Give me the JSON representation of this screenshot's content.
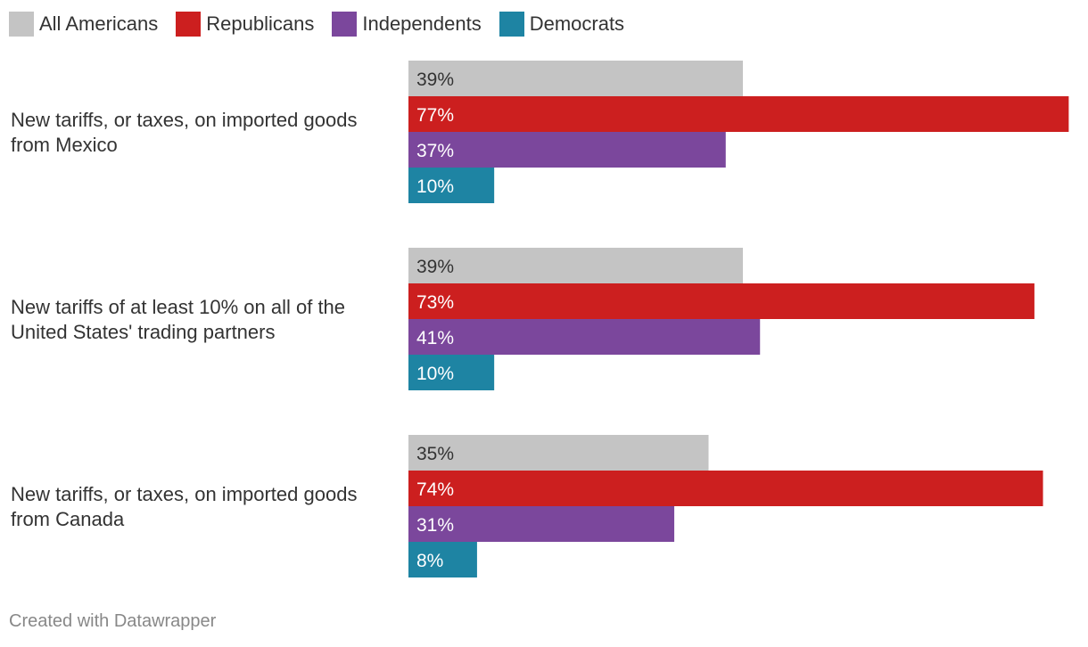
{
  "chart_data": {
    "type": "bar",
    "orientation": "horizontal",
    "grouped": true,
    "value_suffix": "%",
    "xlim": [
      0,
      78
    ],
    "categories": [
      [
        "New tariffs, or taxes, on imported goods",
        "from Mexico"
      ],
      [
        "New tariffs of at least 10% on all of the",
        "United States' trading partners"
      ],
      [
        "New tariffs, or taxes, on imported goods",
        "from Canada"
      ]
    ],
    "series": [
      {
        "name": "All Americans",
        "color": "#c4c4c4",
        "label_color": "#333333",
        "values": [
          39,
          39,
          35
        ]
      },
      {
        "name": "Republicans",
        "color": "#cc1f1f",
        "label_color": "#ffffff",
        "values": [
          77,
          73,
          74
        ]
      },
      {
        "name": "Independents",
        "color": "#7b479c",
        "label_color": "#ffffff",
        "values": [
          37,
          41,
          31
        ]
      },
      {
        "name": "Democrats",
        "color": "#1e84a3",
        "label_color": "#ffffff",
        "values": [
          10,
          10,
          8
        ]
      }
    ],
    "legend": "top-left"
  },
  "credit": "Created with Datawrapper"
}
